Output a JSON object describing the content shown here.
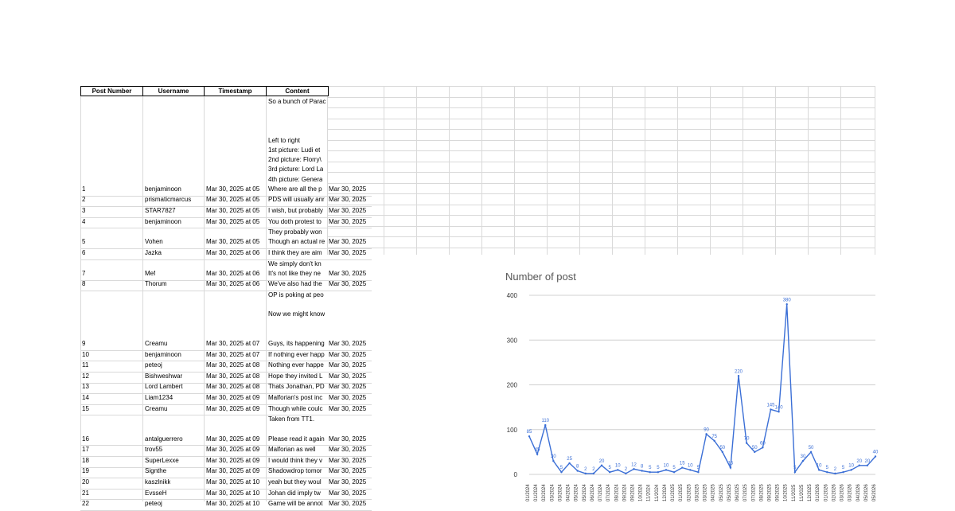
{
  "sheet": {
    "headers": [
      "Post Number",
      "Username",
      "Timestamp",
      "Content"
    ],
    "pre_content_lines": [
      "So a bunch of Parac",
      "",
      "",
      "",
      "Left to right",
      "1st picture: Ludi et",
      "2nd picture: Florry\\",
      "3rd picture: Lord La",
      "4th picture: Genera"
    ],
    "rows": [
      {
        "num": "1",
        "user": "benjaminoon",
        "ts": "Mar 30, 2025 at 05",
        "content": "Where are all the p",
        "date": "Mar 30, 2025",
        "above": []
      },
      {
        "num": "2",
        "user": "prismaticmarcus",
        "ts": "Mar 30, 2025 at 05",
        "content": "PDS will usually anr",
        "date": "Mar 30, 2025",
        "above": []
      },
      {
        "num": "3",
        "user": "STAR7827",
        "ts": "Mar 30, 2025 at 05",
        "content": "I wish, but probably",
        "date": "Mar 30, 2025",
        "above": []
      },
      {
        "num": "4",
        "user": "benjaminoon",
        "ts": "Mar 30, 2025 at 05",
        "content": "You doth protest to",
        "date": "Mar 30, 2025",
        "above": []
      },
      {
        "num": "5",
        "user": "Vohen",
        "ts": "Mar 30, 2025 at 05",
        "content": "Though an actual re",
        "date": "Mar 30, 2025",
        "above": [
          "They probably won"
        ]
      },
      {
        "num": "6",
        "user": "Jazka",
        "ts": "Mar 30, 2025 at 06",
        "content": "I think they are aim",
        "date": "Mar 30, 2025",
        "above": []
      },
      {
        "num": "7",
        "user": "Mef",
        "ts": "Mar 30, 2025 at 06",
        "content": "It's not like they ne",
        "date": "Mar 30, 2025",
        "above": [
          "We simply don't kn"
        ]
      },
      {
        "num": "8",
        "user": "Thorum",
        "ts": "Mar 30, 2025 at 06",
        "content": "We've also had the",
        "date": "Mar 30, 2025",
        "above": []
      },
      {
        "num": "9",
        "user": "Creamu",
        "ts": "Mar 30, 2025 at 07",
        "content": "Guys, its happening",
        "date": "Mar 30, 2025",
        "above": [
          "OP is poking at peo",
          "",
          "Now we might know",
          "",
          ""
        ]
      },
      {
        "num": "10",
        "user": "benjaminoon",
        "ts": "Mar 30, 2025 at 07",
        "content": "If nothing ever happ",
        "date": "Mar 30, 2025",
        "above": []
      },
      {
        "num": "11",
        "user": "peteoj",
        "ts": "Mar 30, 2025 at 08",
        "content": "Nothing ever happe",
        "date": "Mar 30, 2025",
        "above": []
      },
      {
        "num": "12",
        "user": "Bishweshwar",
        "ts": "Mar 30, 2025 at 08",
        "content": "Hope they invited L",
        "date": "Mar 30, 2025",
        "above": []
      },
      {
        "num": "13",
        "user": "Lord Lambert",
        "ts": "Mar 30, 2025 at 08",
        "content": "Thats Jonathan, PD",
        "date": "Mar 30, 2025",
        "above": []
      },
      {
        "num": "14",
        "user": "Liam1234",
        "ts": "Mar 30, 2025 at 09",
        "content": "Malforian's post inc",
        "date": "Mar 30, 2025",
        "above": []
      },
      {
        "num": "15",
        "user": "Creamu",
        "ts": "Mar 30, 2025 at 09",
        "content": "Though while coulc",
        "date": "Mar 30, 2025",
        "above": []
      },
      {
        "num": "16",
        "user": "antalguerrero",
        "ts": "Mar 30, 2025 at 09",
        "content": "Please read it again",
        "date": "Mar 30, 2025",
        "above": [
          "Taken from TT1.",
          ""
        ]
      },
      {
        "num": "17",
        "user": "trov55",
        "ts": "Mar 30, 2025 at 09",
        "content": "Malforian as well",
        "date": "Mar 30, 2025",
        "above": []
      },
      {
        "num": "18",
        "user": "SuperLexxe",
        "ts": "Mar 30, 2025 at 09",
        "content": "I would think they v",
        "date": "Mar 30, 2025",
        "above": []
      },
      {
        "num": "19",
        "user": "Signthe",
        "ts": "Mar 30, 2025 at 09",
        "content": "Shadowdrop tomor",
        "date": "Mar 30, 2025",
        "above": []
      },
      {
        "num": "20",
        "user": "kaszlnikk",
        "ts": "Mar 30, 2025 at 10",
        "content": "yeah but they woul",
        "date": "Mar 30, 2025",
        "above": []
      },
      {
        "num": "21",
        "user": "EvsseH",
        "ts": "Mar 30, 2025 at 10",
        "content": "Johan did imply tw",
        "date": "Mar 30, 2025",
        "above": []
      },
      {
        "num": "22",
        "user": "peteoj",
        "ts": "Mar 30, 2025 at 10",
        "content": "Game will be annot",
        "date": "Mar 30, 2025",
        "above": []
      }
    ]
  },
  "chart_data": {
    "type": "line",
    "title": "Number of post",
    "xlabel": "",
    "ylabel": "",
    "ylim": [
      0,
      400
    ],
    "yticks": [
      0,
      100,
      200,
      300,
      400
    ],
    "grid": true,
    "color": "#3b6fd6",
    "series": [
      {
        "values": [
          85,
          45,
          110,
          30,
          5,
          25,
          8,
          2,
          2,
          20,
          5,
          10,
          2,
          12,
          8,
          5,
          5,
          10,
          5,
          15,
          10,
          5,
          90,
          75,
          50,
          15,
          220,
          70,
          50,
          60,
          145,
          140,
          380,
          5,
          30,
          50,
          10,
          5,
          2,
          5,
          10,
          20,
          20,
          40
        ]
      }
    ],
    "data_labels": [
      "85",
      "45",
      "110",
      "30",
      "5",
      "25",
      "8",
      "2",
      "2",
      "20",
      "5",
      "10",
      "2",
      "12",
      "8",
      "5",
      "5",
      "10",
      "5",
      "15",
      "10",
      "5",
      "90",
      "75",
      "50",
      "15",
      "220",
      "70",
      "50",
      "60",
      "145",
      "140",
      "380",
      "5",
      "30",
      "50",
      "10",
      "5",
      "2",
      "5",
      "10",
      "20",
      "20",
      "40"
    ],
    "x_tick_labels": [
      "01/2024",
      "01/2024",
      "02/2024",
      "03/2024",
      "03/2024",
      "04/2024",
      "05/2024",
      "05/2024",
      "06/2024",
      "07/2024",
      "07/2024",
      "08/2024",
      "09/2024",
      "09/2024",
      "10/2024",
      "11/2024",
      "11/2024",
      "12/2024",
      "01/2025",
      "01/2025",
      "02/2025",
      "03/2025",
      "03/2025",
      "04/2025",
      "05/2025",
      "05/2025",
      "06/2025",
      "07/2025",
      "07/2025",
      "08/2025",
      "09/2025",
      "09/2025",
      "10/2025",
      "11/2025",
      "11/2025",
      "12/2025",
      "01/2026",
      "01/2026",
      "02/2026",
      "03/2026",
      "03/2026",
      "04/2026",
      "05/2026",
      "05/2026"
    ]
  }
}
